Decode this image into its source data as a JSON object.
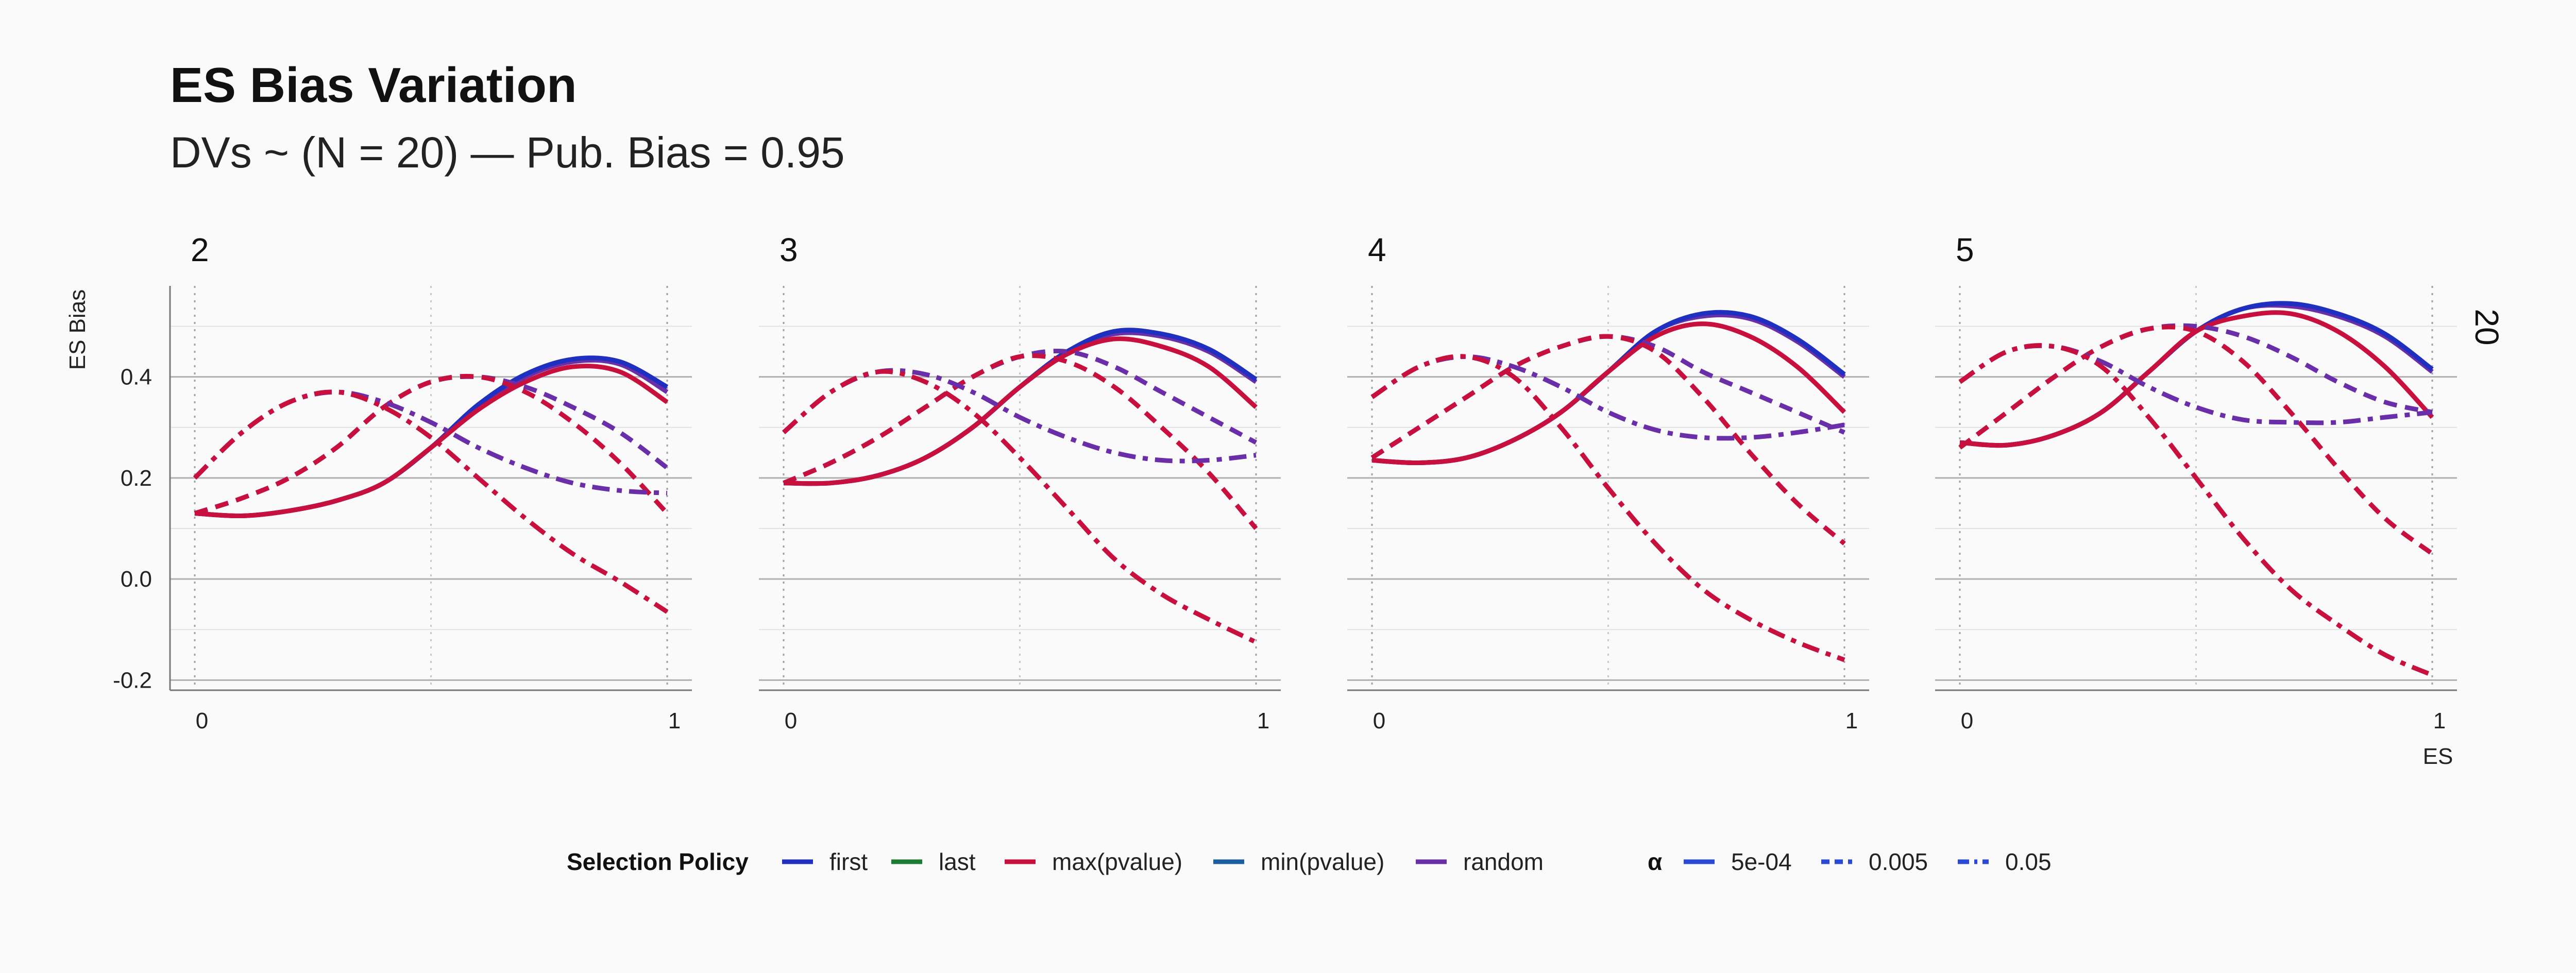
{
  "title": "ES Bias Variation",
  "subtitle": "DVs ~ (N = 20) — Pub. Bias = 0.95",
  "ylabel": "ES Bias",
  "xlabel": "ES",
  "row_strip": "20",
  "colors": {
    "first": "#1f2fbf",
    "last": "#1e7b34",
    "max(pvalue)": "#c8103f",
    "min(pvalue)": "#1b5f9e",
    "random": "#6a2fa8",
    "alpha_key": "#2a4ad6"
  },
  "legend": {
    "policy_title": "Selection Policy",
    "policy_items": [
      "first",
      "last",
      "max(pvalue)",
      "min(pvalue)",
      "random"
    ],
    "alpha_title": "α",
    "alpha_items": [
      "5e-04",
      "0.005",
      "0.05"
    ]
  },
  "chart_data": {
    "type": "line",
    "x_ticks": [
      "0",
      "1"
    ],
    "y_ticks": [
      "-0.2",
      "0.0",
      "0.2",
      "0.4"
    ],
    "xlim": [
      0,
      1
    ],
    "ylim": [
      -0.22,
      0.58
    ],
    "grid": true,
    "legend_position": "bottom",
    "facets": [
      {
        "label": "2",
        "series": [
          {
            "policy": "random",
            "alpha": "5e-04",
            "x": [
              0,
              0.1,
              0.2,
              0.3,
              0.4,
              0.5,
              0.6,
              0.7,
              0.8,
              0.9,
              1
            ],
            "y": [
              0.13,
              0.125,
              0.135,
              0.155,
              0.19,
              0.26,
              0.34,
              0.4,
              0.43,
              0.425,
              0.37
            ]
          },
          {
            "policy": "first",
            "alpha": "5e-04",
            "x": [
              0,
              0.1,
              0.2,
              0.3,
              0.4,
              0.5,
              0.6,
              0.7,
              0.8,
              0.9,
              1
            ],
            "y": [
              0.13,
              0.125,
              0.135,
              0.155,
              0.19,
              0.26,
              0.345,
              0.405,
              0.435,
              0.43,
              0.38
            ]
          },
          {
            "policy": "max(pvalue)",
            "alpha": "5e-04",
            "x": [
              0,
              0.1,
              0.2,
              0.3,
              0.4,
              0.5,
              0.6,
              0.7,
              0.8,
              0.9,
              1
            ],
            "y": [
              0.13,
              0.125,
              0.135,
              0.155,
              0.19,
              0.26,
              0.335,
              0.39,
              0.42,
              0.41,
              0.35
            ]
          },
          {
            "policy": "random",
            "alpha": "0.005",
            "x": [
              0,
              0.1,
              0.2,
              0.3,
              0.4,
              0.5,
              0.6,
              0.7,
              0.8,
              0.9,
              1
            ],
            "y": [
              0.13,
              0.16,
              0.2,
              0.26,
              0.34,
              0.39,
              0.4,
              0.38,
              0.34,
              0.29,
              0.22
            ]
          },
          {
            "policy": "max(pvalue)",
            "alpha": "0.005",
            "x": [
              0,
              0.1,
              0.2,
              0.3,
              0.4,
              0.5,
              0.6,
              0.7,
              0.8,
              0.9,
              1
            ],
            "y": [
              0.13,
              0.16,
              0.2,
              0.26,
              0.34,
              0.39,
              0.4,
              0.37,
              0.31,
              0.23,
              0.13
            ]
          },
          {
            "policy": "random",
            "alpha": "0.05",
            "x": [
              0,
              0.1,
              0.2,
              0.3,
              0.4,
              0.5,
              0.6,
              0.7,
              0.8,
              0.9,
              1
            ],
            "y": [
              0.2,
              0.29,
              0.35,
              0.37,
              0.35,
              0.31,
              0.26,
              0.22,
              0.19,
              0.175,
              0.17
            ]
          },
          {
            "policy": "max(pvalue)",
            "alpha": "0.05",
            "x": [
              0,
              0.1,
              0.2,
              0.3,
              0.4,
              0.5,
              0.6,
              0.7,
              0.8,
              0.9,
              1
            ],
            "y": [
              0.2,
              0.29,
              0.35,
              0.37,
              0.34,
              0.28,
              0.2,
              0.12,
              0.05,
              -0.005,
              -0.065
            ]
          }
        ]
      },
      {
        "label": "3",
        "series": [
          {
            "policy": "random",
            "alpha": "5e-04",
            "x": [
              0,
              0.1,
              0.2,
              0.3,
              0.4,
              0.5,
              0.6,
              0.7,
              0.8,
              0.9,
              1
            ],
            "y": [
              0.19,
              0.19,
              0.205,
              0.24,
              0.3,
              0.38,
              0.45,
              0.485,
              0.48,
              0.45,
              0.39
            ]
          },
          {
            "policy": "first",
            "alpha": "5e-04",
            "x": [
              0,
              0.1,
              0.2,
              0.3,
              0.4,
              0.5,
              0.6,
              0.7,
              0.8,
              0.9,
              1
            ],
            "y": [
              0.19,
              0.19,
              0.205,
              0.24,
              0.3,
              0.38,
              0.45,
              0.49,
              0.485,
              0.455,
              0.395
            ]
          },
          {
            "policy": "max(pvalue)",
            "alpha": "5e-04",
            "x": [
              0,
              0.1,
              0.2,
              0.3,
              0.4,
              0.5,
              0.6,
              0.7,
              0.8,
              0.9,
              1
            ],
            "y": [
              0.19,
              0.19,
              0.205,
              0.24,
              0.3,
              0.38,
              0.445,
              0.475,
              0.46,
              0.42,
              0.34
            ]
          },
          {
            "policy": "random",
            "alpha": "0.005",
            "x": [
              0,
              0.1,
              0.2,
              0.3,
              0.4,
              0.5,
              0.6,
              0.7,
              0.8,
              0.9,
              1
            ],
            "y": [
              0.19,
              0.23,
              0.28,
              0.34,
              0.4,
              0.44,
              0.45,
              0.42,
              0.37,
              0.32,
              0.27
            ]
          },
          {
            "policy": "max(pvalue)",
            "alpha": "0.005",
            "x": [
              0,
              0.1,
              0.2,
              0.3,
              0.4,
              0.5,
              0.6,
              0.7,
              0.8,
              0.9,
              1
            ],
            "y": [
              0.19,
              0.23,
              0.28,
              0.34,
              0.4,
              0.44,
              0.43,
              0.38,
              0.3,
              0.21,
              0.1
            ]
          },
          {
            "policy": "random",
            "alpha": "0.05",
            "x": [
              0,
              0.1,
              0.2,
              0.3,
              0.4,
              0.5,
              0.6,
              0.7,
              0.8,
              0.9,
              1
            ],
            "y": [
              0.29,
              0.37,
              0.41,
              0.405,
              0.37,
              0.32,
              0.28,
              0.25,
              0.235,
              0.235,
              0.245
            ]
          },
          {
            "policy": "max(pvalue)",
            "alpha": "0.05",
            "x": [
              0,
              0.1,
              0.2,
              0.3,
              0.4,
              0.5,
              0.6,
              0.7,
              0.8,
              0.9,
              1
            ],
            "y": [
              0.29,
              0.37,
              0.41,
              0.39,
              0.33,
              0.24,
              0.14,
              0.04,
              -0.03,
              -0.08,
              -0.125
            ]
          }
        ]
      },
      {
        "label": "4",
        "series": [
          {
            "policy": "random",
            "alpha": "5e-04",
            "x": [
              0,
              0.1,
              0.2,
              0.3,
              0.4,
              0.5,
              0.6,
              0.7,
              0.8,
              0.9,
              1
            ],
            "y": [
              0.235,
              0.23,
              0.24,
              0.275,
              0.33,
              0.41,
              0.49,
              0.52,
              0.515,
              0.47,
              0.4
            ]
          },
          {
            "policy": "first",
            "alpha": "5e-04",
            "x": [
              0,
              0.1,
              0.2,
              0.3,
              0.4,
              0.5,
              0.6,
              0.7,
              0.8,
              0.9,
              1
            ],
            "y": [
              0.235,
              0.23,
              0.24,
              0.275,
              0.33,
              0.41,
              0.49,
              0.525,
              0.52,
              0.475,
              0.405
            ]
          },
          {
            "policy": "max(pvalue)",
            "alpha": "5e-04",
            "x": [
              0,
              0.1,
              0.2,
              0.3,
              0.4,
              0.5,
              0.6,
              0.7,
              0.8,
              0.9,
              1
            ],
            "y": [
              0.235,
              0.23,
              0.24,
              0.275,
              0.33,
              0.41,
              0.48,
              0.505,
              0.48,
              0.42,
              0.33
            ]
          },
          {
            "policy": "random",
            "alpha": "0.005",
            "x": [
              0,
              0.1,
              0.2,
              0.3,
              0.4,
              0.5,
              0.6,
              0.7,
              0.8,
              0.9,
              1
            ],
            "y": [
              0.24,
              0.3,
              0.36,
              0.42,
              0.46,
              0.48,
              0.46,
              0.41,
              0.37,
              0.33,
              0.29
            ]
          },
          {
            "policy": "max(pvalue)",
            "alpha": "0.005",
            "x": [
              0,
              0.1,
              0.2,
              0.3,
              0.4,
              0.5,
              0.6,
              0.7,
              0.8,
              0.9,
              1
            ],
            "y": [
              0.24,
              0.3,
              0.36,
              0.42,
              0.46,
              0.48,
              0.45,
              0.36,
              0.25,
              0.15,
              0.07
            ]
          },
          {
            "policy": "random",
            "alpha": "0.05",
            "x": [
              0,
              0.1,
              0.2,
              0.3,
              0.4,
              0.5,
              0.6,
              0.7,
              0.8,
              0.9,
              1
            ],
            "y": [
              0.36,
              0.42,
              0.44,
              0.42,
              0.38,
              0.33,
              0.295,
              0.28,
              0.28,
              0.29,
              0.305
            ]
          },
          {
            "policy": "max(pvalue)",
            "alpha": "0.05",
            "x": [
              0,
              0.1,
              0.2,
              0.3,
              0.4,
              0.5,
              0.6,
              0.7,
              0.8,
              0.9,
              1
            ],
            "y": [
              0.36,
              0.42,
              0.44,
              0.4,
              0.3,
              0.18,
              0.07,
              -0.02,
              -0.08,
              -0.125,
              -0.16
            ]
          }
        ]
      },
      {
        "label": "5",
        "series": [
          {
            "policy": "random",
            "alpha": "5e-04",
            "x": [
              0,
              0.1,
              0.2,
              0.3,
              0.4,
              0.5,
              0.6,
              0.7,
              0.8,
              0.9,
              1
            ],
            "y": [
              0.27,
              0.265,
              0.285,
              0.33,
              0.41,
              0.49,
              0.535,
              0.54,
              0.52,
              0.48,
              0.41
            ]
          },
          {
            "policy": "first",
            "alpha": "5e-04",
            "x": [
              0,
              0.1,
              0.2,
              0.3,
              0.4,
              0.5,
              0.6,
              0.7,
              0.8,
              0.9,
              1
            ],
            "y": [
              0.27,
              0.265,
              0.285,
              0.33,
              0.41,
              0.49,
              0.535,
              0.545,
              0.525,
              0.485,
              0.415
            ]
          },
          {
            "policy": "max(pvalue)",
            "alpha": "5e-04",
            "x": [
              0,
              0.1,
              0.2,
              0.3,
              0.4,
              0.5,
              0.6,
              0.7,
              0.8,
              0.9,
              1
            ],
            "y": [
              0.27,
              0.265,
              0.285,
              0.33,
              0.41,
              0.49,
              0.52,
              0.525,
              0.49,
              0.42,
              0.32
            ]
          },
          {
            "policy": "random",
            "alpha": "0.005",
            "x": [
              0,
              0.1,
              0.2,
              0.3,
              0.4,
              0.5,
              0.6,
              0.7,
              0.8,
              0.9,
              1
            ],
            "y": [
              0.26,
              0.33,
              0.4,
              0.46,
              0.495,
              0.5,
              0.48,
              0.44,
              0.39,
              0.35,
              0.33
            ]
          },
          {
            "policy": "max(pvalue)",
            "alpha": "0.005",
            "x": [
              0,
              0.1,
              0.2,
              0.3,
              0.4,
              0.5,
              0.6,
              0.7,
              0.8,
              0.9,
              1
            ],
            "y": [
              0.26,
              0.33,
              0.4,
              0.46,
              0.495,
              0.49,
              0.43,
              0.33,
              0.22,
              0.12,
              0.05
            ]
          },
          {
            "policy": "random",
            "alpha": "0.05",
            "x": [
              0,
              0.1,
              0.2,
              0.3,
              0.4,
              0.5,
              0.6,
              0.7,
              0.8,
              0.9,
              1
            ],
            "y": [
              0.39,
              0.45,
              0.46,
              0.43,
              0.38,
              0.34,
              0.315,
              0.31,
              0.31,
              0.32,
              0.33
            ]
          },
          {
            "policy": "max(pvalue)",
            "alpha": "0.05",
            "x": [
              0,
              0.1,
              0.2,
              0.3,
              0.4,
              0.5,
              0.6,
              0.7,
              0.8,
              0.9,
              1
            ],
            "y": [
              0.39,
              0.45,
              0.46,
              0.42,
              0.32,
              0.2,
              0.08,
              -0.02,
              -0.09,
              -0.15,
              -0.19
            ]
          }
        ]
      }
    ]
  }
}
